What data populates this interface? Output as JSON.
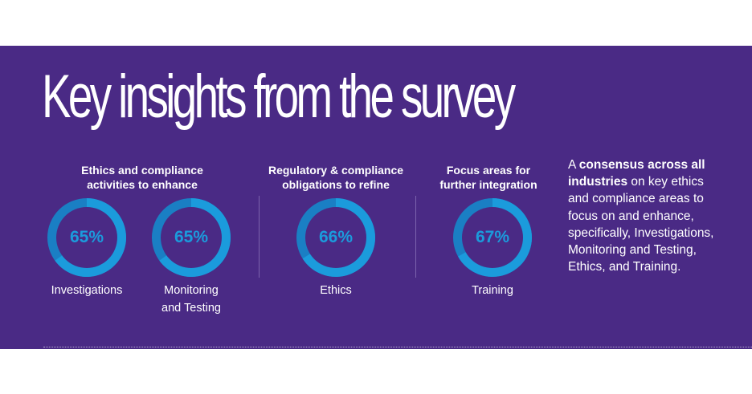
{
  "title": "Key insights from the survey",
  "groups": [
    {
      "heading": "Ethics and compliance\nactivities to enhance"
    },
    {
      "heading": "Regulatory & compliance\nobligations to refine"
    },
    {
      "heading": "Focus areas for\nfurther integration"
    }
  ],
  "metrics": [
    {
      "percent_label": "65%",
      "value": 65,
      "caption": "Investigations"
    },
    {
      "percent_label": "65%",
      "value": 65,
      "caption": "Monitoring\nand Testing"
    },
    {
      "percent_label": "66%",
      "value": 66,
      "caption": "Ethics"
    },
    {
      "percent_label": "67%",
      "value": 67,
      "caption": "Training"
    }
  ],
  "summary": {
    "part1": "A ",
    "bold": "consensus across all industries",
    "part2": " on key ethics and compliance areas to focus on and enhance, specifically, Investigations, Monitoring and Testing, Ethics, and Training."
  },
  "colors": {
    "background": "#4a2a85",
    "ring_fill": "#1b9bdc",
    "ring_track": "#1a7fc4",
    "ring_hole": "#4a2a85",
    "text": "#ffffff",
    "percent_text": "#1b9bdc"
  }
}
